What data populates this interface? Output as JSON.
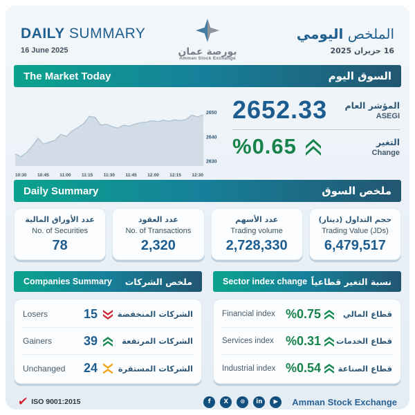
{
  "header": {
    "title_en_bold": "DAILY",
    "title_en_rest": "SUMMARY",
    "date_en": "16 June 2025",
    "logo": {
      "arabic": "بورصة عمان",
      "english": "Amman Stock Exchange"
    },
    "title_ar_prefix": "الملخص",
    "title_ar_bold": "اليومي",
    "date_ar": "16 حزيران 2025"
  },
  "market_today": {
    "banner_en": "The Market Today",
    "banner_ar": "السوق اليوم",
    "index_label_ar": "المؤشر العام",
    "index_label_en": "ASEGI",
    "index_value": "2652.33",
    "change_label_ar": "التغير",
    "change_label_en": "Change",
    "change_value": "%0.65",
    "change_direction": "up"
  },
  "chart_data": {
    "type": "area",
    "title": "ASEGI intraday index",
    "x_ticks": [
      "10:30",
      "10:45",
      "11:00",
      "11:15",
      "11:30",
      "11:45",
      "12:00",
      "12:15",
      "12:30"
    ],
    "y_ticks": [
      2650,
      2640,
      2630
    ],
    "ylim": [
      2628,
      2653
    ],
    "x_range": [
      "10:30",
      "12:30"
    ],
    "values": [
      2633.0,
      2631.8,
      2633.5,
      2636.2,
      2639.4,
      2637.0,
      2637.8,
      2638.6,
      2641.0,
      2640.2,
      2642.4,
      2643.8,
      2645.4,
      2648.4,
      2648.0,
      2644.8,
      2645.2,
      2644.2,
      2643.6,
      2644.8,
      2644.4,
      2645.2,
      2645.8,
      2646.0,
      2646.6,
      2646.2,
      2646.8,
      2646.4,
      2647.0,
      2646.6,
      2647.2,
      2648.9,
      2648.2,
      2649.0
    ],
    "grid": false,
    "legend": false,
    "line_color": "#aabfd0",
    "fill_color": "#d2dce6"
  },
  "daily_summary": {
    "banner_en": "Daily Summary",
    "banner_ar": "ملخص السوق",
    "cards": [
      {
        "label_ar": "عدد الأوراق المالية",
        "label_en": "No. of Securities",
        "value": "78"
      },
      {
        "label_ar": "عدد العقود",
        "label_en": "No. of Transactions",
        "value": "2,320"
      },
      {
        "label_ar": "عدد الأسهم",
        "label_en": "Trading volume",
        "value": "2,728,330"
      },
      {
        "label_ar": "حجم التداول (دينار)",
        "label_en": "Trading Value (JDs)",
        "value": "6,479,517"
      }
    ]
  },
  "companies_summary": {
    "banner_en": "Companies Summary",
    "banner_ar": "ملخص الشركات",
    "rows": [
      {
        "label_en": "Losers",
        "value": "15",
        "icon": "double-chevron-down-icon",
        "icon_color": "#d02c3a",
        "label_ar": "الشركات المنخفضة"
      },
      {
        "label_en": "Gainers",
        "value": "39",
        "icon": "double-chevron-up-icon",
        "icon_color": "#168a52",
        "label_ar": "الشركات المرتفعة"
      },
      {
        "label_en": "Unchanged",
        "value": "24",
        "icon": "chevron-x-icon",
        "icon_color": "#f2a71b",
        "label_ar": "الشركات المستقرة"
      }
    ]
  },
  "sector_index": {
    "banner_en": "Sector index change",
    "banner_ar": "نسبة التغير قطاعياً",
    "rows": [
      {
        "label_en": "Financial index",
        "value": "%0.75",
        "direction": "up",
        "label_ar": "قطاع المالي"
      },
      {
        "label_en": "Services index",
        "value": "%0.31",
        "direction": "up",
        "label_ar": "قطاع الخدمات"
      },
      {
        "label_en": "Industrial index",
        "value": "%0.54",
        "direction": "up",
        "label_ar": "قطاع الصناعة"
      }
    ]
  },
  "footer": {
    "iso_text": "ISO 9001:2015",
    "brand": "Amman Stock Exchange",
    "social": [
      {
        "name": "facebook-icon",
        "glyph": "f"
      },
      {
        "name": "x-twitter-icon",
        "glyph": "X"
      },
      {
        "name": "instagram-icon",
        "glyph": "⊙"
      },
      {
        "name": "linkedin-icon",
        "glyph": "in"
      },
      {
        "name": "youtube-icon",
        "glyph": "▶"
      }
    ]
  },
  "colors": {
    "banner_gradient_start": "#0aa38d",
    "banner_gradient_end": "#225671",
    "primary_blue": "#1d5c8e",
    "green": "#17824a",
    "red": "#d02c3a",
    "amber": "#f2a71b"
  }
}
